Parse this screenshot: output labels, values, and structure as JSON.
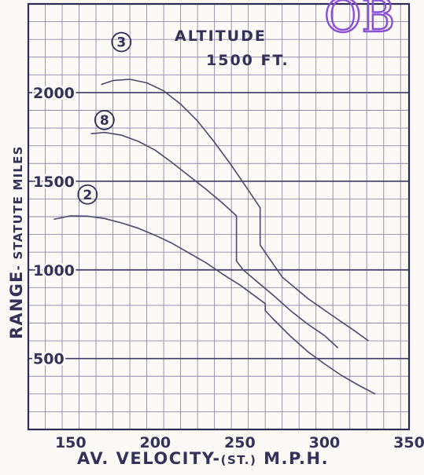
{
  "chart_data": {
    "type": "line",
    "title": "",
    "annotation": [
      "ALTITUDE",
      "1500 FT."
    ],
    "xlabel": "AV. VELOCITY-",
    "xlabel_unit": "(ST.)",
    "xlabel_suffix": " M.P.H.",
    "ylabel": "RANGE- STATUTE MILES",
    "ylabel_main": "RANGE",
    "ylabel_rest": "- STATUTE MILES",
    "xlim": [
      125,
      350
    ],
    "ylim": [
      100,
      2500
    ],
    "x_ticks": [
      150,
      200,
      250,
      300,
      350
    ],
    "y_ticks": [
      500,
      1000,
      1500,
      2000
    ],
    "grid": true,
    "series": [
      {
        "name": "3",
        "x": [
          168,
          175,
          185,
          195,
          205,
          215,
          225,
          235,
          245,
          255,
          262,
          262,
          267,
          275,
          290,
          305,
          318,
          326
        ],
        "y": [
          2045,
          2068,
          2075,
          2055,
          2010,
          1935,
          1840,
          1720,
          1590,
          1450,
          1350,
          1140,
          1070,
          960,
          840,
          740,
          655,
          600
        ]
      },
      {
        "name": "8",
        "x": [
          162,
          170,
          180,
          190,
          200,
          210,
          220,
          230,
          240,
          248,
          248,
          252,
          260,
          270,
          280,
          290,
          300,
          308
        ],
        "y": [
          1768,
          1775,
          1760,
          1725,
          1675,
          1605,
          1530,
          1455,
          1375,
          1305,
          1050,
          1000,
          935,
          855,
          770,
          695,
          630,
          560
        ]
      },
      {
        "name": "2",
        "x": [
          140,
          150,
          160,
          170,
          180,
          190,
          200,
          210,
          220,
          230,
          240,
          250,
          260,
          265,
          265,
          270,
          280,
          290,
          300,
          310,
          320,
          330
        ],
        "y": [
          1285,
          1305,
          1303,
          1290,
          1265,
          1235,
          1195,
          1150,
          1095,
          1040,
          975,
          915,
          845,
          810,
          770,
          720,
          625,
          540,
          470,
          405,
          350,
          300
        ]
      }
    ]
  },
  "stamp_text": "OB"
}
